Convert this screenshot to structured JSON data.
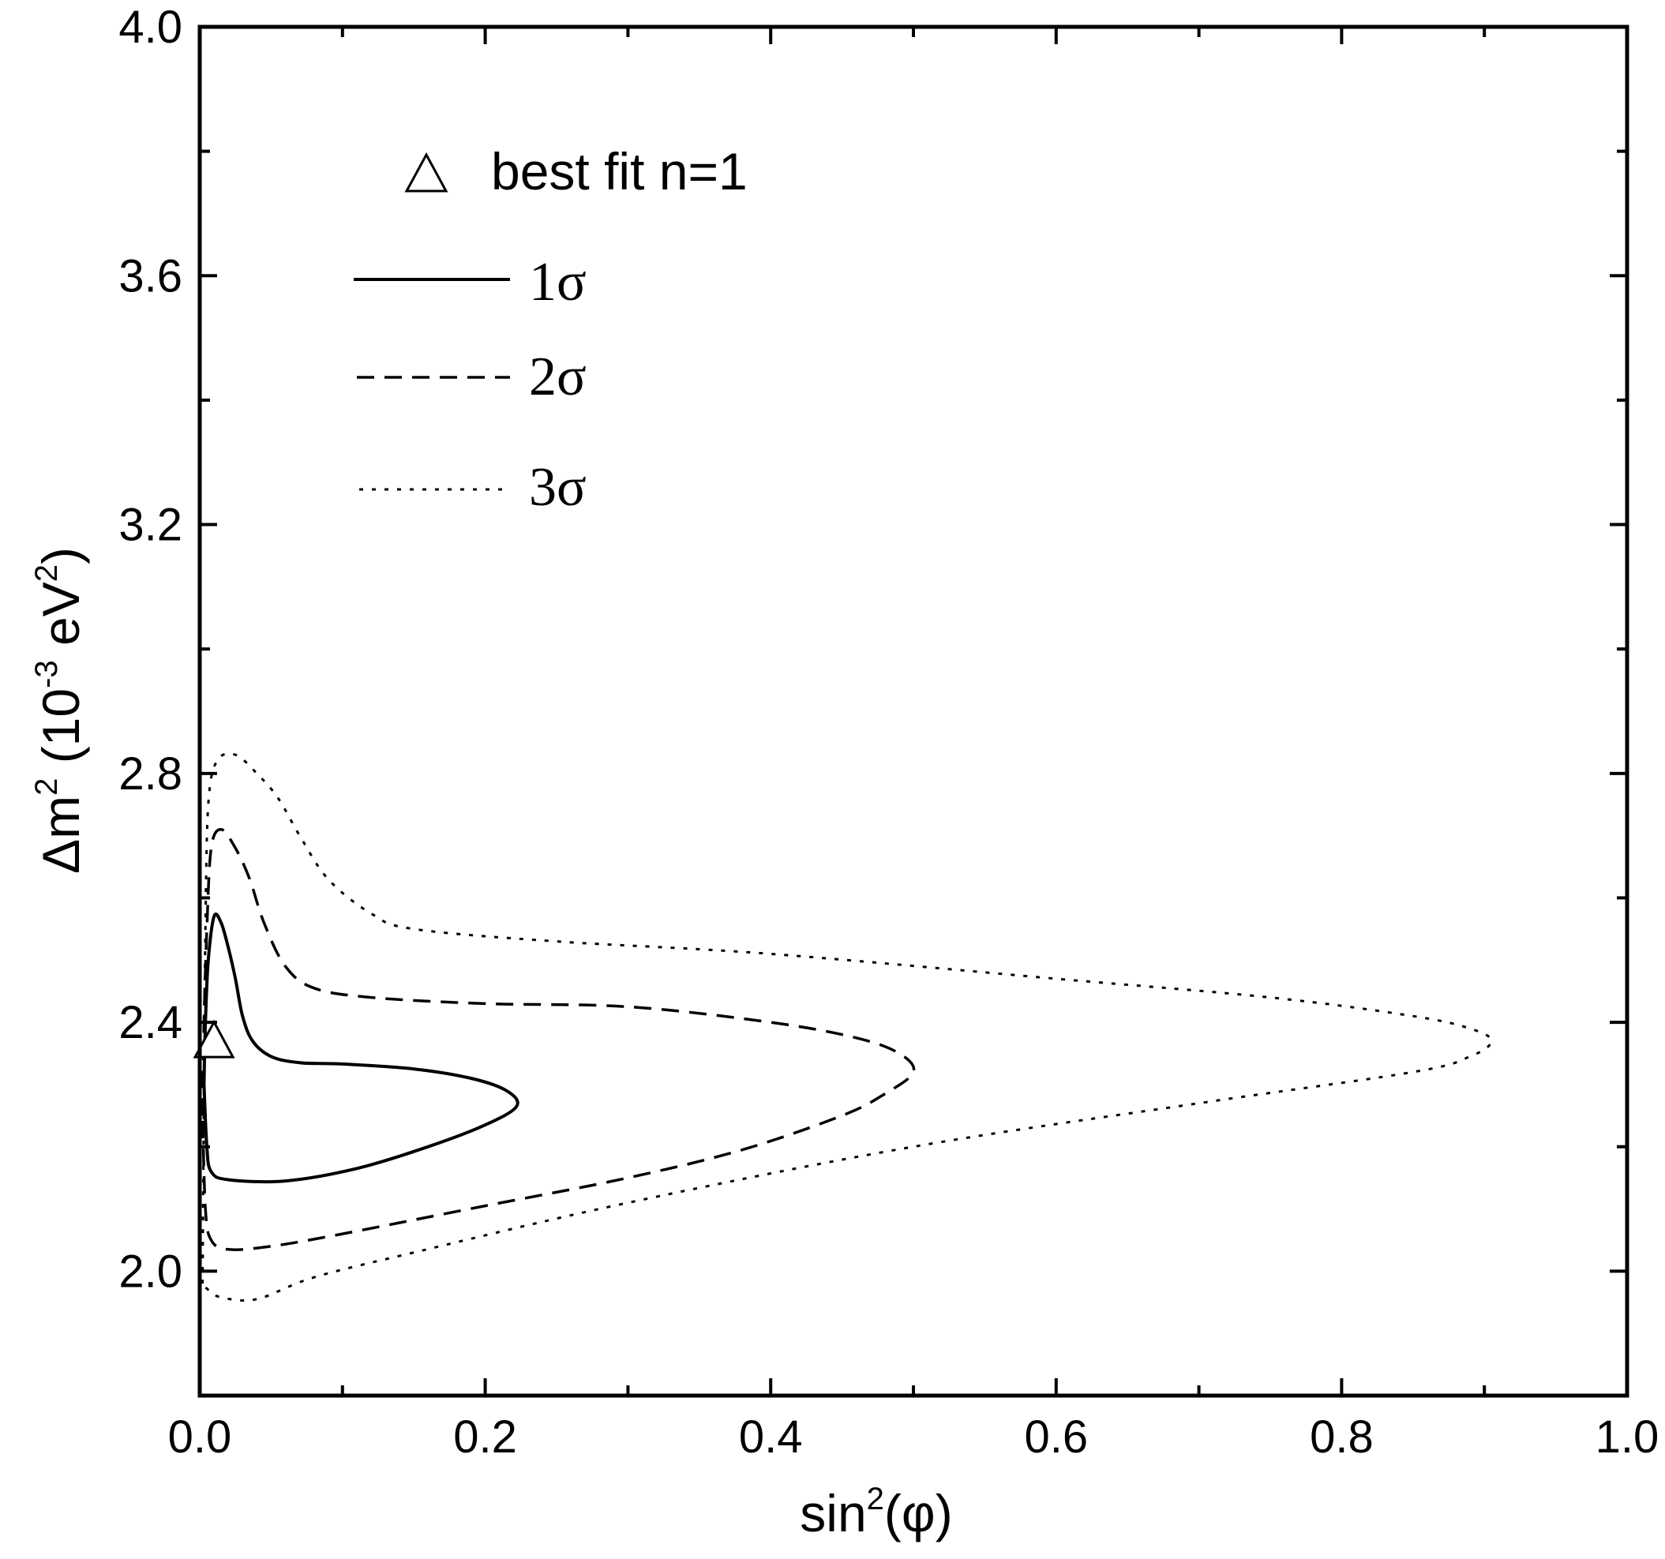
{
  "chart_data": {
    "type": "line",
    "title": "",
    "xlabel": {
      "prefix": "sin",
      "sup": "2",
      "suffix": "(φ)"
    },
    "ylabel": {
      "delta": "Δm",
      "sup1": "2",
      "open": " (10",
      "sup2": "-3",
      "unit": " eV",
      "sup3": "2",
      "close": ")"
    },
    "xlim": [
      0.0,
      1.0
    ],
    "ylim": [
      1.8,
      4.0
    ],
    "x_ticks": [
      {
        "value": 0.0,
        "label": "0.0"
      },
      {
        "value": 0.2,
        "label": "0.2"
      },
      {
        "value": 0.4,
        "label": "0.4"
      },
      {
        "value": 0.6,
        "label": "0.6"
      },
      {
        "value": 0.8,
        "label": "0.8"
      },
      {
        "value": 1.0,
        "label": "1.0"
      }
    ],
    "x_minor_ticks": [
      0.1,
      0.3,
      0.5,
      0.7,
      0.9
    ],
    "y_ticks": [
      {
        "value": 2.0,
        "label": "2.0"
      },
      {
        "value": 2.4,
        "label": "2.4"
      },
      {
        "value": 2.8,
        "label": "2.8"
      },
      {
        "value": 3.2,
        "label": "3.2"
      },
      {
        "value": 3.6,
        "label": "3.6"
      },
      {
        "value": 4.0,
        "label": "4.0"
      }
    ],
    "y_minor_ticks": [
      2.2,
      2.6,
      3.0,
      3.4,
      3.8
    ],
    "grid": false,
    "legend_position": "top-left",
    "best_fit": {
      "name": "best fit n=1",
      "x": 0.01,
      "y": 2.37
    },
    "series": [
      {
        "name": "1σ",
        "style": "solid",
        "points": [
          [
            0.003,
            2.3
          ],
          [
            0.004,
            2.4
          ],
          [
            0.006,
            2.5
          ],
          [
            0.01,
            2.57
          ],
          [
            0.015,
            2.56
          ],
          [
            0.02,
            2.52
          ],
          [
            0.025,
            2.47
          ],
          [
            0.03,
            2.41
          ],
          [
            0.037,
            2.37
          ],
          [
            0.05,
            2.345
          ],
          [
            0.07,
            2.335
          ],
          [
            0.1,
            2.333
          ],
          [
            0.15,
            2.325
          ],
          [
            0.19,
            2.31
          ],
          [
            0.215,
            2.29
          ],
          [
            0.222,
            2.265
          ],
          [
            0.2,
            2.235
          ],
          [
            0.16,
            2.2
          ],
          [
            0.11,
            2.165
          ],
          [
            0.06,
            2.145
          ],
          [
            0.02,
            2.147
          ],
          [
            0.008,
            2.16
          ],
          [
            0.005,
            2.2
          ],
          [
            0.003,
            2.3
          ]
        ]
      },
      {
        "name": "2σ",
        "style": "dashed",
        "points": [
          [
            0.002,
            2.25
          ],
          [
            0.003,
            2.4
          ],
          [
            0.005,
            2.55
          ],
          [
            0.008,
            2.68
          ],
          [
            0.015,
            2.71
          ],
          [
            0.025,
            2.68
          ],
          [
            0.035,
            2.63
          ],
          [
            0.045,
            2.56
          ],
          [
            0.06,
            2.49
          ],
          [
            0.08,
            2.455
          ],
          [
            0.12,
            2.44
          ],
          [
            0.2,
            2.43
          ],
          [
            0.3,
            2.425
          ],
          [
            0.4,
            2.4
          ],
          [
            0.46,
            2.375
          ],
          [
            0.49,
            2.35
          ],
          [
            0.5,
            2.32
          ],
          [
            0.48,
            2.285
          ],
          [
            0.45,
            2.25
          ],
          [
            0.38,
            2.195
          ],
          [
            0.3,
            2.15
          ],
          [
            0.2,
            2.105
          ],
          [
            0.1,
            2.06
          ],
          [
            0.05,
            2.04
          ],
          [
            0.02,
            2.035
          ],
          [
            0.008,
            2.05
          ],
          [
            0.004,
            2.1
          ],
          [
            0.002,
            2.25
          ]
        ]
      },
      {
        "name": "3σ",
        "style": "dotted",
        "points": [
          [
            0.002,
            1.98
          ],
          [
            0.003,
            2.3
          ],
          [
            0.004,
            2.55
          ],
          [
            0.006,
            2.75
          ],
          [
            0.012,
            2.82
          ],
          [
            0.025,
            2.83
          ],
          [
            0.04,
            2.8
          ],
          [
            0.055,
            2.76
          ],
          [
            0.07,
            2.7
          ],
          [
            0.09,
            2.63
          ],
          [
            0.12,
            2.575
          ],
          [
            0.15,
            2.55
          ],
          [
            0.25,
            2.53
          ],
          [
            0.4,
            2.51
          ],
          [
            0.6,
            2.47
          ],
          [
            0.75,
            2.44
          ],
          [
            0.85,
            2.41
          ],
          [
            0.89,
            2.39
          ],
          [
            0.905,
            2.37
          ],
          [
            0.89,
            2.345
          ],
          [
            0.85,
            2.32
          ],
          [
            0.7,
            2.27
          ],
          [
            0.5,
            2.2
          ],
          [
            0.3,
            2.11
          ],
          [
            0.15,
            2.03
          ],
          [
            0.08,
            1.99
          ],
          [
            0.04,
            1.955
          ],
          [
            0.015,
            1.958
          ],
          [
            0.006,
            1.97
          ],
          [
            0.002,
            1.98
          ]
        ]
      }
    ]
  }
}
